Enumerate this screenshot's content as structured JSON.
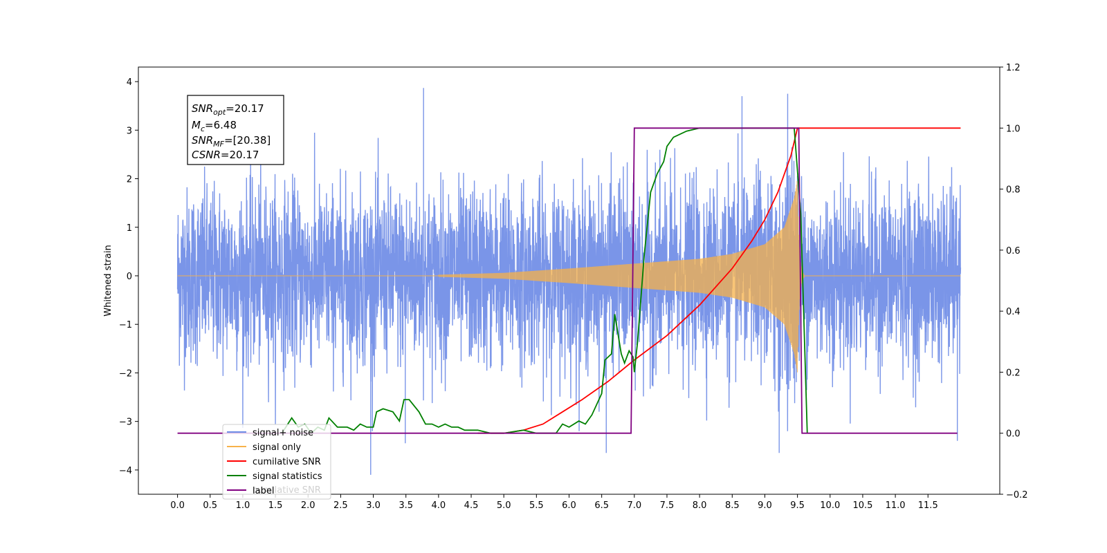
{
  "chart_data": {
    "type": "line",
    "ylabel_left": "Whitened strain",
    "xlim": [
      -0.6,
      12.6
    ],
    "ylim_left": [
      -4.5,
      4.3
    ],
    "ylim_right": [
      -0.2,
      1.2
    ],
    "x_ticks": [
      "0.0",
      "0.5",
      "1.0",
      "1.5",
      "2.0",
      "2.5",
      "3.0",
      "3.5",
      "4.0",
      "4.5",
      "5.0",
      "5.5",
      "6.0",
      "6.5",
      "7.0",
      "7.5",
      "8.0",
      "8.5",
      "9.0",
      "9.5",
      "10.0",
      "10.5",
      "11.0",
      "11.5"
    ],
    "y_ticks_left": [
      "4",
      "3",
      "2",
      "1",
      "0",
      "−1",
      "−2",
      "−3",
      "−4"
    ],
    "y_ticks_right": [
      "1.2",
      "1.0",
      "0.8",
      "0.6",
      "0.4",
      "0.2",
      "0.0",
      "−0.2"
    ],
    "grid": false,
    "legend_position": "lower-left",
    "annotation": {
      "line1_sub": "opt",
      "line1_val": "=20.17",
      "line2_sub": "c",
      "line2_val": "=6.48",
      "line3_sub": "MF",
      "line3_val": "=[20.38]",
      "line4_val": "=20.17",
      "sym_snr": "SNR",
      "sym_m": "M",
      "sym_csnr": "CSNR"
    },
    "series": [
      {
        "name": "signal+ noise",
        "color": "#6c8ae6",
        "axis": "left",
        "x_range": [
          0.0,
          12.0
        ],
        "noise_std": 0.9,
        "spikes": [
          [
            3.77,
            3.87
          ],
          [
            9.35,
            3.75
          ],
          [
            8.65,
            3.7
          ],
          [
            2.96,
            -4.1
          ],
          [
            9.22,
            -3.65
          ],
          [
            6.57,
            -3.65
          ],
          [
            3.49,
            -3.45
          ],
          [
            11.95,
            -3.4
          ]
        ]
      },
      {
        "name": "signal only",
        "color": "#f7b24a",
        "axis": "left",
        "x_range": [
          0.0,
          12.0
        ],
        "chirp_start": 4.0,
        "chirp_merger": 9.5,
        "chirp_end": 9.6,
        "amplitude_points": [
          [
            4.0,
            0.02
          ],
          [
            5.0,
            0.06
          ],
          [
            6.0,
            0.15
          ],
          [
            7.0,
            0.25
          ],
          [
            8.0,
            0.35
          ],
          [
            8.5,
            0.45
          ],
          [
            9.0,
            0.65
          ],
          [
            9.3,
            1.0
          ],
          [
            9.45,
            1.6
          ],
          [
            9.5,
            2.0
          ]
        ]
      },
      {
        "name": "cumilative SNR",
        "color": "#ff0000",
        "axis": "right",
        "points": [
          [
            4.6,
            0.0
          ],
          [
            5.0,
            0.0
          ],
          [
            5.3,
            0.01
          ],
          [
            5.6,
            0.03
          ],
          [
            5.9,
            0.07
          ],
          [
            6.2,
            0.11
          ],
          [
            6.6,
            0.17
          ],
          [
            7.0,
            0.24
          ],
          [
            7.5,
            0.32
          ],
          [
            8.0,
            0.42
          ],
          [
            8.5,
            0.54
          ],
          [
            8.8,
            0.63
          ],
          [
            9.0,
            0.7
          ],
          [
            9.2,
            0.79
          ],
          [
            9.4,
            0.91
          ],
          [
            9.5,
            1.0
          ],
          [
            12.0,
            1.0
          ]
        ]
      },
      {
        "name": "signal statistics",
        "color": "#008000",
        "axis": "right",
        "points": [
          [
            1.6,
            0.0
          ],
          [
            1.75,
            0.05
          ],
          [
            1.85,
            0.02
          ],
          [
            1.95,
            0.03
          ],
          [
            2.05,
            0.0
          ],
          [
            2.15,
            0.02
          ],
          [
            2.25,
            0.01
          ],
          [
            2.32,
            0.05
          ],
          [
            2.45,
            0.02
          ],
          [
            2.6,
            0.02
          ],
          [
            2.7,
            0.01
          ],
          [
            2.8,
            0.03
          ],
          [
            2.9,
            0.02
          ],
          [
            3.0,
            0.02
          ],
          [
            3.05,
            0.07
          ],
          [
            3.15,
            0.08
          ],
          [
            3.3,
            0.07
          ],
          [
            3.4,
            0.04
          ],
          [
            3.47,
            0.11
          ],
          [
            3.55,
            0.11
          ],
          [
            3.7,
            0.07
          ],
          [
            3.8,
            0.03
          ],
          [
            3.9,
            0.03
          ],
          [
            4.0,
            0.02
          ],
          [
            4.1,
            0.03
          ],
          [
            4.2,
            0.02
          ],
          [
            4.3,
            0.02
          ],
          [
            4.4,
            0.01
          ],
          [
            4.6,
            0.01
          ],
          [
            4.8,
            0.0
          ],
          [
            5.0,
            0.0
          ],
          [
            5.3,
            0.01
          ],
          [
            5.5,
            0.0
          ],
          [
            5.8,
            0.0
          ],
          [
            5.9,
            0.03
          ],
          [
            6.0,
            0.02
          ],
          [
            6.15,
            0.04
          ],
          [
            6.25,
            0.03
          ],
          [
            6.35,
            0.06
          ],
          [
            6.5,
            0.13
          ],
          [
            6.55,
            0.24
          ],
          [
            6.65,
            0.26
          ],
          [
            6.7,
            0.39
          ],
          [
            6.8,
            0.26
          ],
          [
            6.85,
            0.23
          ],
          [
            6.92,
            0.27
          ],
          [
            6.98,
            0.25
          ],
          [
            7.0,
            0.2
          ],
          [
            7.05,
            0.3
          ],
          [
            7.15,
            0.58
          ],
          [
            7.25,
            0.79
          ],
          [
            7.35,
            0.85
          ],
          [
            7.45,
            0.89
          ],
          [
            7.5,
            0.94
          ],
          [
            7.6,
            0.97
          ],
          [
            7.8,
            0.99
          ],
          [
            8.0,
            1.0
          ],
          [
            9.45,
            1.0
          ],
          [
            9.55,
            0.72
          ],
          [
            9.65,
            0.0
          ]
        ]
      },
      {
        "name": "label",
        "color": "#800080",
        "axis": "right",
        "points": [
          [
            0.0,
            0.0
          ],
          [
            6.95,
            0.0
          ],
          [
            7.0,
            1.0
          ],
          [
            9.52,
            1.0
          ],
          [
            9.57,
            0.0
          ],
          [
            11.95,
            0.0
          ]
        ]
      }
    ],
    "legend_ghost_text": "cumilative SNR"
  }
}
